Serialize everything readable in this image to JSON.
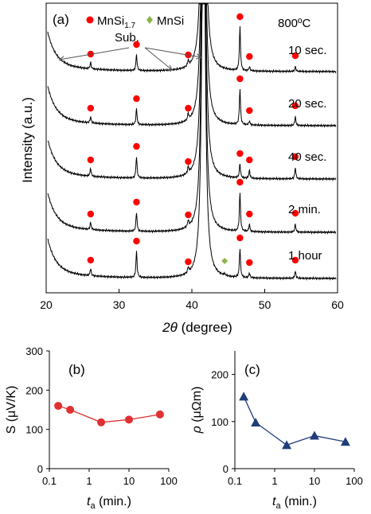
{
  "chart_data": [
    {
      "panel": "a",
      "type": "line",
      "panel_label": "(a)",
      "xlabel_italic": "2θ",
      "xlabel": "(degree)",
      "ylabel": "Intensity (a.u.)",
      "xlim": [
        20,
        60
      ],
      "xticks": [
        "20",
        "30",
        "40",
        "50",
        "60"
      ],
      "temperature": "800ºC",
      "legend": [
        {
          "name": "MnSi",
          "sub": "1.7",
          "marker": "circle",
          "color": "#ff0000"
        },
        {
          "name": "MnSi",
          "sub": "",
          "marker": "diamond",
          "color": "#8fb44b"
        }
      ],
      "substrate_label": "Sub.",
      "substrate_peaks": [
        20.7,
        41.6
      ],
      "substrate_arrow_targets": [
        21.8,
        37.3,
        41.3
      ],
      "mnsi17_peaks": [
        26.1,
        32.4,
        39.5,
        46.6,
        47.9,
        54.2
      ],
      "mnsi_peaks": [
        44.5
      ],
      "series": [
        {
          "name": "10 sec.",
          "peak_heights": [
            8,
            20,
            7,
            55,
            5,
            6
          ],
          "mnsi_height": 0
        },
        {
          "name": "20 sec.",
          "peak_heights": [
            8,
            20,
            8,
            45,
            5,
            11
          ],
          "mnsi_height": 0
        },
        {
          "name": "40 sec.",
          "peak_heights": [
            10,
            27,
            8,
            18,
            10,
            14
          ],
          "mnsi_height": 0
        },
        {
          "name": "2 min.",
          "peak_heights": [
            9,
            24,
            8,
            49,
            9,
            10
          ],
          "mnsi_height": 0
        },
        {
          "name": "1 hour",
          "peak_heights": [
            9,
            33,
            7,
            37,
            6,
            9
          ],
          "mnsi_height": 2
        }
      ]
    },
    {
      "panel": "b",
      "type": "line",
      "panel_label": "(b)",
      "xscale": "log",
      "xlim": [
        0.1,
        100
      ],
      "ylim": [
        0,
        300
      ],
      "xticks": [
        "0.1",
        "1",
        "10",
        "100"
      ],
      "yticks": [
        "0",
        "100",
        "200",
        "300"
      ],
      "xlabel_italic": "t",
      "xlabel_sub": "a",
      "xlabel": "(min.)",
      "ylabel": "S (μV/K)",
      "color": "#e03030",
      "marker": "circle",
      "x": [
        0.167,
        0.333,
        2,
        10,
        60
      ],
      "y": [
        160,
        150,
        118,
        125,
        138
      ]
    },
    {
      "panel": "c",
      "type": "line",
      "panel_label": "(c)",
      "xscale": "log",
      "xlim": [
        0.1,
        100
      ],
      "ylim": [
        0,
        250
      ],
      "xticks": [
        "0.1",
        "1",
        "10",
        "100"
      ],
      "yticks": [
        "0",
        "100",
        "200"
      ],
      "xlabel_italic": "t",
      "xlabel_sub": "a",
      "xlabel": "(min.)",
      "ylabel_italic": "ρ",
      "ylabel": "(μΩm)",
      "color": "#1f3d7a",
      "marker": "triangle",
      "x": [
        0.167,
        0.333,
        2,
        10,
        60
      ],
      "y": [
        153,
        98,
        50,
        70,
        57
      ]
    }
  ]
}
